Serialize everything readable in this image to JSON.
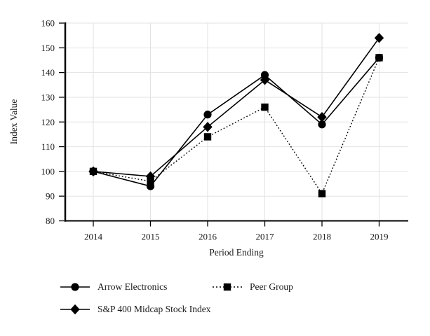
{
  "chart_data": {
    "type": "line",
    "title": "",
    "x": [
      "2014",
      "2015",
      "2016",
      "2017",
      "2018",
      "2019"
    ],
    "series": [
      {
        "name": "Arrow Electronics",
        "marker": "circle",
        "line_style": "solid",
        "values": [
          100,
          94,
          123,
          139,
          119,
          146
        ]
      },
      {
        "name": "Peer Group",
        "marker": "square",
        "line_style": "dotted",
        "values": [
          100,
          96,
          114,
          126,
          91,
          146
        ]
      },
      {
        "name": "S&P 400 Midcap Stock Index",
        "marker": "diamond",
        "line_style": "solid",
        "values": [
          100,
          98,
          118,
          137,
          122,
          154
        ]
      }
    ],
    "xlabel": "Period Ending",
    "ylabel": "Index Value",
    "ylim": [
      80,
      160
    ],
    "yticks": [
      80,
      90,
      100,
      110,
      120,
      130,
      140,
      150,
      160
    ],
    "grid": true,
    "legend_position": "bottom-left"
  },
  "colors": {
    "series": "#000000",
    "axis": "#000000",
    "grid": "#e2e2e2",
    "text": "#1a1a1a",
    "background": "#ffffff"
  }
}
